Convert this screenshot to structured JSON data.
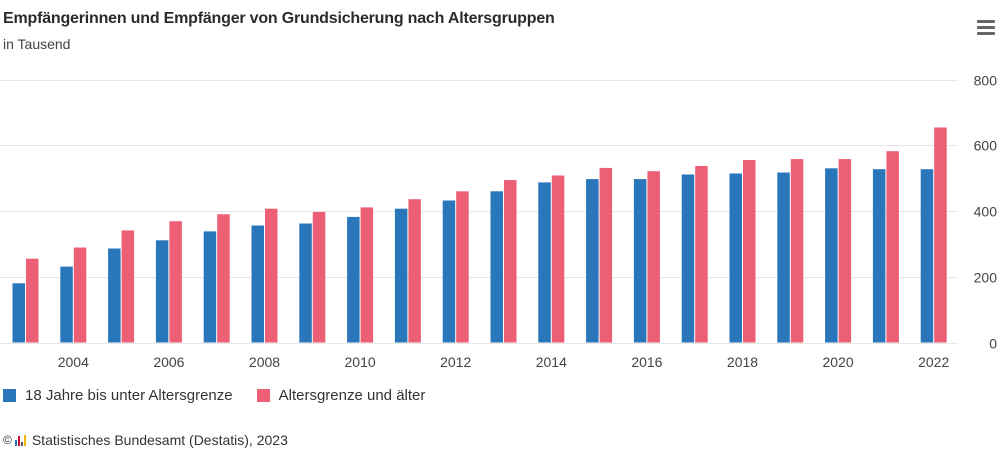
{
  "header": {
    "title": "Empfängerinnen und Empfänger von Grundsicherung nach Altersgruppen",
    "subtitle": "in Tausend",
    "menu_icon": "hamburger-menu-icon"
  },
  "colors": {
    "series_blue": "#2a76bb",
    "series_red": "#ed5f74",
    "grid": "#e6e6e6",
    "axis_text": "#444444"
  },
  "chart_data": {
    "type": "bar",
    "title": "Empfängerinnen und Empfänger von Grundsicherung nach Altersgruppen",
    "subtitle": "in Tausend",
    "xlabel": "",
    "ylabel": "",
    "categories": [
      "2003",
      "2004",
      "2005",
      "2006",
      "2007",
      "2008",
      "2009",
      "2010",
      "2011",
      "2012",
      "2013",
      "2014",
      "2015",
      "2016",
      "2017",
      "2018",
      "2019",
      "2020",
      "2021",
      "2022"
    ],
    "x_tick_labels": [
      "2004",
      "2006",
      "2008",
      "2010",
      "2012",
      "2014",
      "2016",
      "2018",
      "2020",
      "2022"
    ],
    "series": [
      {
        "name": "18 Jahre bis unter Altersgrenze",
        "color": "#2a76bb",
        "values": [
          180,
          231,
          286,
          311,
          338,
          356,
          362,
          382,
          407,
          432,
          460,
          487,
          497,
          497,
          511,
          514,
          517,
          530,
          527,
          527
        ]
      },
      {
        "name": "Altersgrenze und älter",
        "color": "#ed5f74",
        "values": [
          255,
          289,
          341,
          369,
          390,
          407,
          397,
          411,
          436,
          460,
          494,
          508,
          531,
          521,
          537,
          555,
          558,
          558,
          582,
          654
        ]
      }
    ],
    "ylim": [
      0,
      800
    ],
    "y_ticks": [
      0,
      200,
      400,
      600,
      800
    ],
    "y_axis_side": "right",
    "grid": true,
    "legend": "bottom-left"
  },
  "legend": {
    "items": [
      {
        "label": "18 Jahre bis unter Altersgrenze",
        "color": "#2a76bb"
      },
      {
        "label": "Altersgrenze und älter",
        "color": "#ed5f74"
      }
    ]
  },
  "footer": {
    "copyright_symbol": "©",
    "credit": "Statistisches Bundesamt (Destatis), 2023"
  }
}
